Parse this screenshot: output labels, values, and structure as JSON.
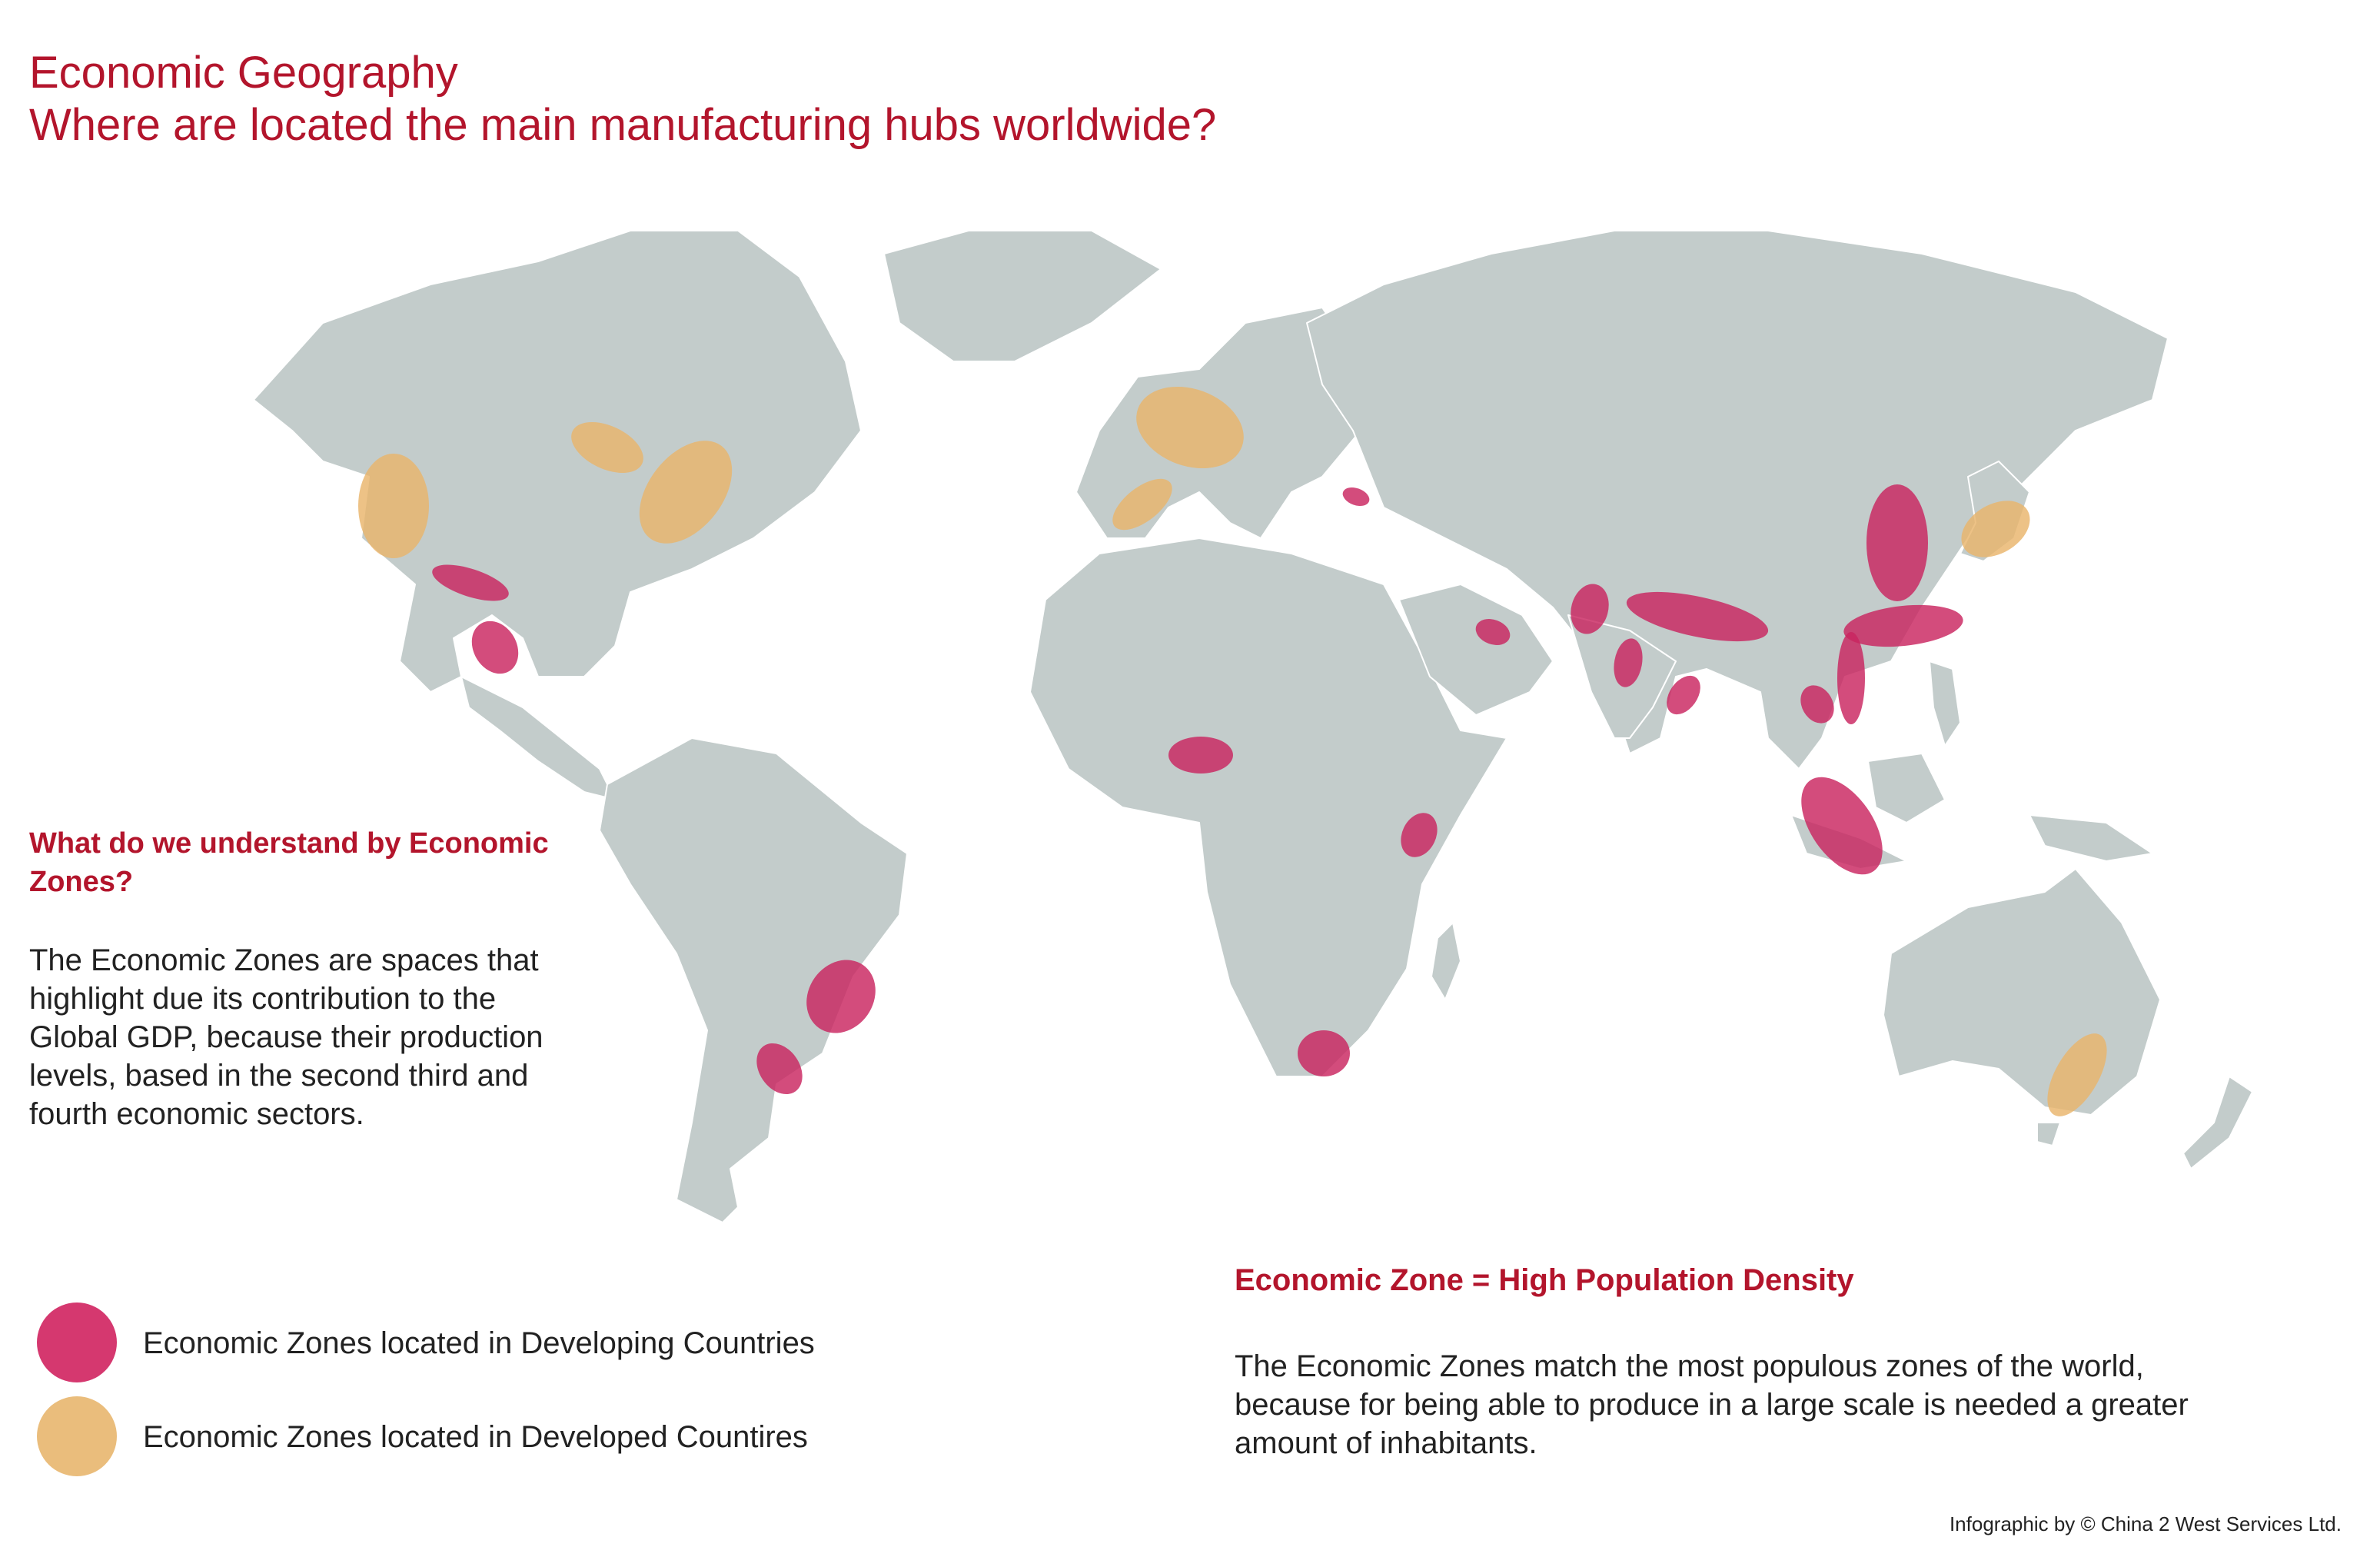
{
  "header": {
    "title": "Economic Geography",
    "subtitle": "Where are located the main manufacturing hubs worldwide?"
  },
  "side_panel": {
    "heading": "What do we understand by Economic Zones?",
    "body": "The Economic Zones are spaces that highlight due its contribution to the Global GDP, because their production levels, based in the second third and fourth economic sectors."
  },
  "legend": {
    "items": [
      {
        "label": "Economic Zones located in Developing Countries",
        "color": "#d5386f"
      },
      {
        "label": "Economic Zones located in Developed Countires",
        "color": "#eabd7c"
      }
    ]
  },
  "bottom_panel": {
    "heading": "Economic Zone = High Population Density",
    "body": "The Economic Zones match the most populous zones of the world, because for being able to produce in a large scale is needed a greater amount of inhabitants."
  },
  "credit": "Infographic by © China 2 West Services Ltd.",
  "map": {
    "land_color": "#c3cccb",
    "border_color": "#ffffff",
    "developing_color": "#c9255f",
    "developed_color": "#e9b46b"
  }
}
